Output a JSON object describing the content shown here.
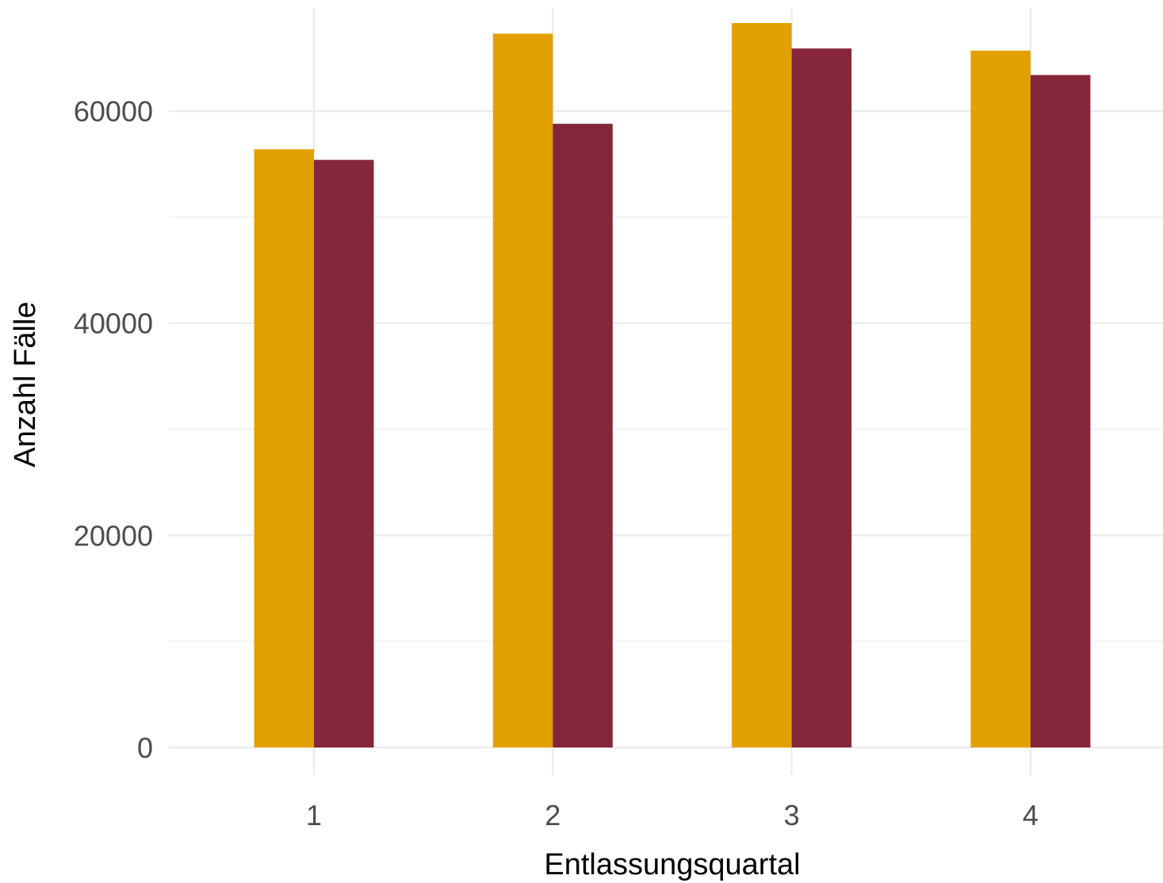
{
  "chart_data": {
    "type": "bar",
    "xlabel": "Entlassungsquartal",
    "ylabel": "Anzahl Fälle",
    "categories": [
      "1",
      "2",
      "3",
      "4"
    ],
    "series": [
      {
        "values": [
          56400,
          67300,
          68300,
          65700
        ],
        "color": "#E3A100"
      },
      {
        "values": [
          55400,
          58800,
          65900,
          63400
        ],
        "color": "#85263A"
      }
    ],
    "ylim": [
      0,
      69500
    ],
    "yticks": [
      0,
      20000,
      40000,
      60000
    ],
    "ytick_labels": [
      "0",
      "20000",
      "40000",
      "60000"
    ],
    "grid": true,
    "legend": "none"
  }
}
